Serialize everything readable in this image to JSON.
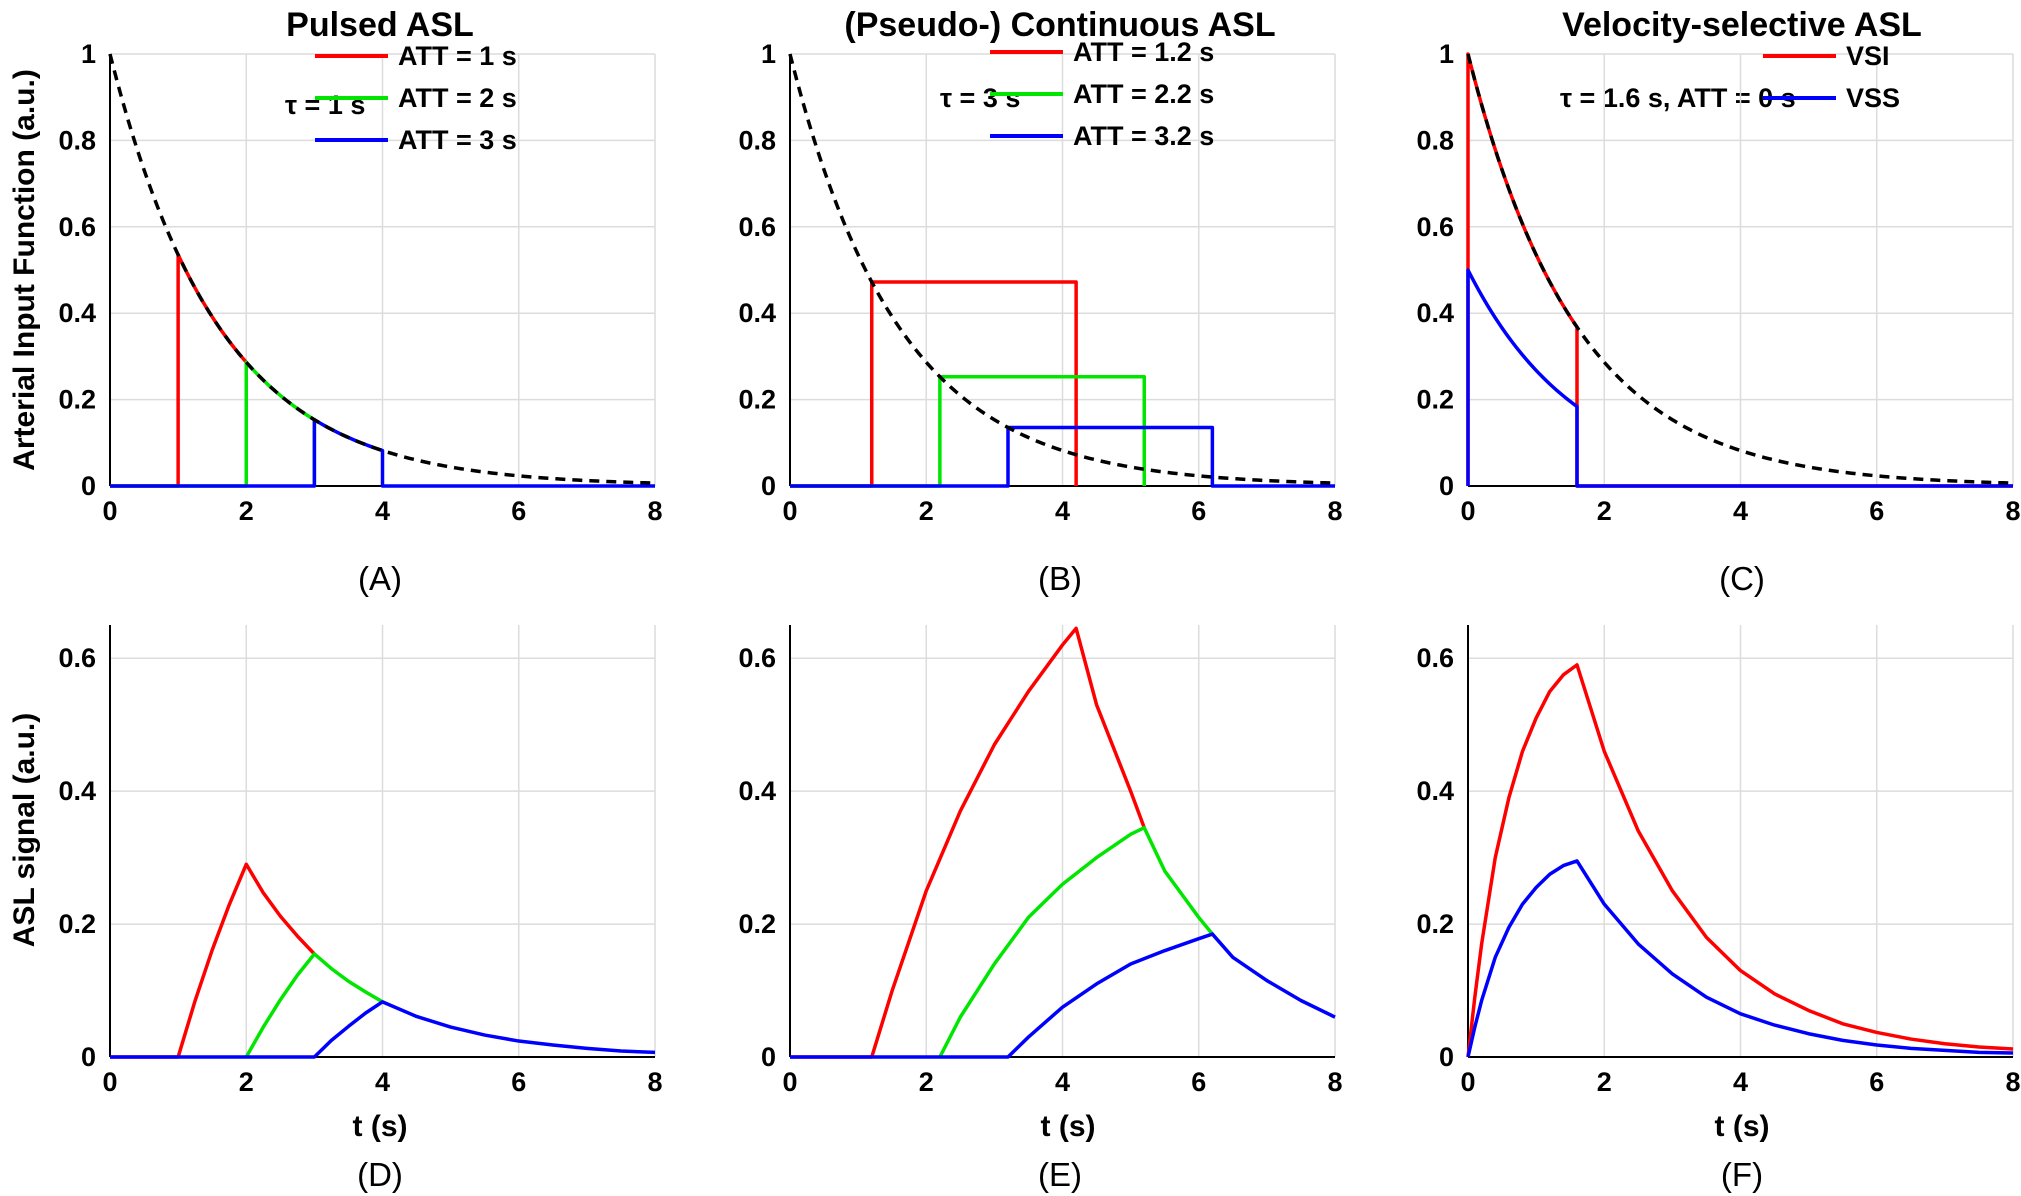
{
  "chart_data": [
    {
      "panel": "A",
      "type": "line",
      "caption": "(A)",
      "title": "Pulsed ASL",
      "xlabel": "",
      "ylabel": "Arterial Input Function (a.u.)",
      "xlim": [
        0,
        8
      ],
      "ylim": [
        0,
        1
      ],
      "xticks": [
        "0",
        "2",
        "4",
        "6",
        "8"
      ],
      "yticks": [
        "0",
        "0.2",
        "0.4",
        "0.6",
        "0.8",
        "1"
      ],
      "grid": true,
      "legend_position": "top-right",
      "annotation": "τ = 1 s",
      "decay_curve": {
        "style": "dashed",
        "color": "#000000",
        "function": "exp(-t/1.6)"
      },
      "series": [
        {
          "name": "ATT = 1 s",
          "color": "#ff0000",
          "att": 1,
          "tau": 1,
          "kind": "pulsed"
        },
        {
          "name": "ATT = 2 s",
          "color": "#00e600",
          "att": 2,
          "tau": 1,
          "kind": "pulsed"
        },
        {
          "name": "ATT = 3 s",
          "color": "#0000ff",
          "att": 3,
          "tau": 1,
          "kind": "pulsed"
        }
      ]
    },
    {
      "panel": "B",
      "type": "line",
      "caption": "(B)",
      "title": "(Pseudo-) Continuous ASL",
      "xlabel": "",
      "ylabel": "",
      "xlim": [
        0,
        8
      ],
      "ylim": [
        0,
        1
      ],
      "xticks": [
        "0",
        "2",
        "4",
        "6",
        "8"
      ],
      "yticks": [
        "0",
        "0.2",
        "0.4",
        "0.6",
        "0.8",
        "1"
      ],
      "grid": true,
      "legend_position": "top-right",
      "annotation": "τ = 3 s",
      "decay_curve": {
        "style": "dashed",
        "color": "#000000",
        "function": "exp(-t/1.6)"
      },
      "series": [
        {
          "name": "ATT = 1.2 s",
          "color": "#ff0000",
          "att": 1.2,
          "tau": 3,
          "kind": "continuous"
        },
        {
          "name": "ATT = 2.2 s",
          "color": "#00e600",
          "att": 2.2,
          "tau": 3,
          "kind": "continuous"
        },
        {
          "name": "ATT = 3.2 s",
          "color": "#0000ff",
          "att": 3.2,
          "tau": 3,
          "kind": "continuous"
        }
      ]
    },
    {
      "panel": "C",
      "type": "line",
      "caption": "(C)",
      "title": "Velocity-selective ASL",
      "xlabel": "",
      "ylabel": "",
      "xlim": [
        0,
        8
      ],
      "ylim": [
        0,
        1
      ],
      "xticks": [
        "0",
        "2",
        "4",
        "6",
        "8"
      ],
      "yticks": [
        "0",
        "0.2",
        "0.4",
        "0.6",
        "0.8",
        "1"
      ],
      "grid": true,
      "legend_position": "top-right",
      "annotation": "τ = 1.6 s, ATT = 0 s",
      "decay_curve": {
        "style": "dashed",
        "color": "#000000",
        "function": "exp(-t/1.6)"
      },
      "series": [
        {
          "name": "VSI",
          "color": "#ff0000",
          "att": 0,
          "tau": 1.6,
          "scale": 1,
          "kind": "pulsed"
        },
        {
          "name": "VSS",
          "color": "#0000ff",
          "att": 0,
          "tau": 1.6,
          "scale": 0.5,
          "kind": "pulsed"
        }
      ]
    },
    {
      "panel": "D",
      "type": "line",
      "caption": "(D)",
      "title": "",
      "xlabel": "t (s)",
      "ylabel": "ASL signal (a.u.)",
      "xlim": [
        0,
        8
      ],
      "ylim": [
        0,
        0.65
      ],
      "xticks": [
        "0",
        "2",
        "4",
        "6",
        "8"
      ],
      "yticks": [
        "0",
        "0.2",
        "0.4",
        "0.6"
      ],
      "grid": true,
      "series": [
        {
          "name": "",
          "color": "#ff0000",
          "x": [
            0,
            1,
            1.25,
            1.5,
            1.75,
            2,
            2.25,
            2.5,
            2.75,
            3
          ],
          "y": [
            0,
            0,
            0.085,
            0.161,
            0.229,
            0.29,
            0.247,
            0.212,
            0.182,
            0.155
          ]
        },
        {
          "name": "",
          "color": "#00e600",
          "x": [
            2,
            2.25,
            2.5,
            2.75,
            3,
            3.25,
            3.5,
            3.75,
            4
          ],
          "y": [
            0,
            0.045,
            0.086,
            0.123,
            0.155,
            0.133,
            0.114,
            0.098,
            0.083
          ]
        },
        {
          "name": "",
          "color": "#0000ff",
          "x": [
            0,
            3,
            3.25,
            3.5,
            3.75,
            4,
            4.5,
            5,
            5.5,
            6,
            6.5,
            7,
            7.5,
            8
          ],
          "y": [
            0,
            0,
            0.025,
            0.046,
            0.066,
            0.083,
            0.061,
            0.045,
            0.033,
            0.024,
            0.018,
            0.013,
            0.009,
            0.007
          ]
        }
      ]
    },
    {
      "panel": "E",
      "type": "line",
      "caption": "(E)",
      "title": "",
      "xlabel": "t (s)",
      "ylabel": "",
      "xlim": [
        0,
        8
      ],
      "ylim": [
        0,
        0.65
      ],
      "xticks": [
        "0",
        "2",
        "4",
        "6",
        "8"
      ],
      "yticks": [
        "0",
        "0.2",
        "0.4",
        "0.6"
      ],
      "grid": true,
      "series": [
        {
          "name": "",
          "color": "#ff0000",
          "x": [
            0,
            1.2,
            1.5,
            2,
            2.5,
            3,
            3.5,
            4,
            4.2,
            4.5,
            5,
            5.2
          ],
          "y": [
            0,
            0,
            0.1,
            0.25,
            0.37,
            0.47,
            0.55,
            0.62,
            0.645,
            0.53,
            0.4,
            0.345
          ]
        },
        {
          "name": "",
          "color": "#00e600",
          "x": [
            2.2,
            2.5,
            3,
            3.5,
            4,
            4.5,
            5,
            5.2,
            5.5,
            6,
            6.2
          ],
          "y": [
            0,
            0.06,
            0.14,
            0.21,
            0.26,
            0.3,
            0.335,
            0.345,
            0.28,
            0.21,
            0.185
          ]
        },
        {
          "name": "",
          "color": "#0000ff",
          "x": [
            0,
            3.2,
            3.5,
            4,
            4.5,
            5,
            5.5,
            6,
            6.2,
            6.5,
            7,
            7.5,
            8
          ],
          "y": [
            0,
            0,
            0.03,
            0.075,
            0.11,
            0.14,
            0.16,
            0.178,
            0.185,
            0.15,
            0.115,
            0.085,
            0.06
          ]
        }
      ]
    },
    {
      "panel": "F",
      "type": "line",
      "caption": "(F)",
      "title": "",
      "xlabel": "t (s)",
      "ylabel": "",
      "xlim": [
        0,
        8
      ],
      "ylim": [
        0,
        0.65
      ],
      "xticks": [
        "0",
        "2",
        "4",
        "6",
        "8"
      ],
      "yticks": [
        "0",
        "0.2",
        "0.4",
        "0.6"
      ],
      "grid": true,
      "series": [
        {
          "name": "VSI",
          "color": "#ff0000",
          "x": [
            0,
            0.1,
            0.2,
            0.4,
            0.6,
            0.8,
            1,
            1.2,
            1.4,
            1.6,
            2,
            2.5,
            3,
            3.5,
            4,
            4.5,
            5,
            5.5,
            6,
            6.5,
            7,
            7.5,
            8
          ],
          "y": [
            0,
            0.09,
            0.17,
            0.3,
            0.39,
            0.46,
            0.51,
            0.55,
            0.575,
            0.59,
            0.46,
            0.34,
            0.25,
            0.18,
            0.13,
            0.095,
            0.07,
            0.05,
            0.037,
            0.027,
            0.02,
            0.015,
            0.012
          ]
        },
        {
          "name": "VSS",
          "color": "#0000ff",
          "x": [
            0,
            0.1,
            0.2,
            0.4,
            0.6,
            0.8,
            1,
            1.2,
            1.4,
            1.6,
            2,
            2.5,
            3,
            3.5,
            4,
            4.5,
            5,
            5.5,
            6,
            6.5,
            7,
            7.5,
            8
          ],
          "y": [
            0,
            0.045,
            0.085,
            0.15,
            0.195,
            0.23,
            0.255,
            0.275,
            0.288,
            0.295,
            0.23,
            0.17,
            0.125,
            0.09,
            0.065,
            0.048,
            0.035,
            0.025,
            0.018,
            0.013,
            0.01,
            0.007,
            0.006
          ]
        }
      ]
    }
  ]
}
